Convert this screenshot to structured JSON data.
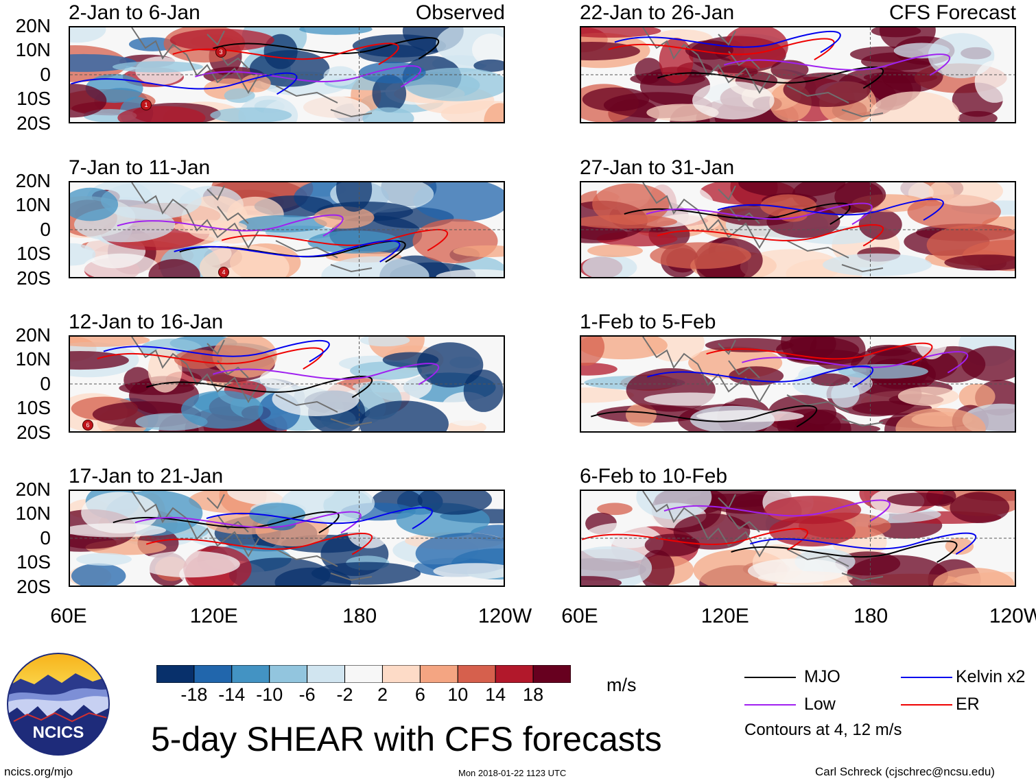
{
  "panels_left": [
    {
      "title": "2-Jan to 6-Jan",
      "source": "Observed"
    },
    {
      "title": "7-Jan to 11-Jan",
      "source": ""
    },
    {
      "title": "12-Jan to 16-Jan",
      "source": ""
    },
    {
      "title": "17-Jan to 21-Jan",
      "source": ""
    }
  ],
  "panels_right": [
    {
      "title": "22-Jan to 26-Jan",
      "source": "CFS Forecast"
    },
    {
      "title": "27-Jan to 31-Jan",
      "source": ""
    },
    {
      "title": "1-Feb to 5-Feb",
      "source": ""
    },
    {
      "title": "6-Feb to 10-Feb",
      "source": ""
    }
  ],
  "lat_labels": [
    "20N",
    "10N",
    "0",
    "10S",
    "20S"
  ],
  "lon_labels": [
    "60E",
    "120E",
    "180",
    "120W"
  ],
  "storm_markers": [
    {
      "panel": "left-0",
      "label": "1"
    },
    {
      "panel": "left-0",
      "label": "3"
    },
    {
      "panel": "left-1",
      "label": "4"
    },
    {
      "panel": "left-2",
      "label": "6"
    }
  ],
  "colorbar": {
    "labels": [
      "-18",
      "-14",
      "-10",
      "-6",
      "-2",
      "2",
      "6",
      "10",
      "14",
      "18"
    ],
    "colors": [
      "#08306b",
      "#2166ac",
      "#4393c3",
      "#92c5de",
      "#d1e5f0",
      "#f7f7f7",
      "#fddbc7",
      "#f4a582",
      "#d6604d",
      "#b2182b",
      "#67001f"
    ],
    "units": "m/s"
  },
  "legend": {
    "items": [
      {
        "label": "MJO",
        "color": "#000000"
      },
      {
        "label": "Kelvin x2",
        "color": "#0000ee"
      },
      {
        "label": "Low",
        "color": "#a020f0"
      },
      {
        "label": "ER",
        "color": "#ee0000"
      }
    ],
    "contour_note": "Contours at 4, 12 m/s"
  },
  "logo": {
    "text": "NCICS"
  },
  "title": "5-day SHEAR with CFS forecasts",
  "footer": {
    "url": "ncics.org/mjo",
    "timestamp": "Mon 2018-01-22 1123 UTC",
    "author": "Carl Schreck (cjschrec@ncsu.edu)"
  }
}
